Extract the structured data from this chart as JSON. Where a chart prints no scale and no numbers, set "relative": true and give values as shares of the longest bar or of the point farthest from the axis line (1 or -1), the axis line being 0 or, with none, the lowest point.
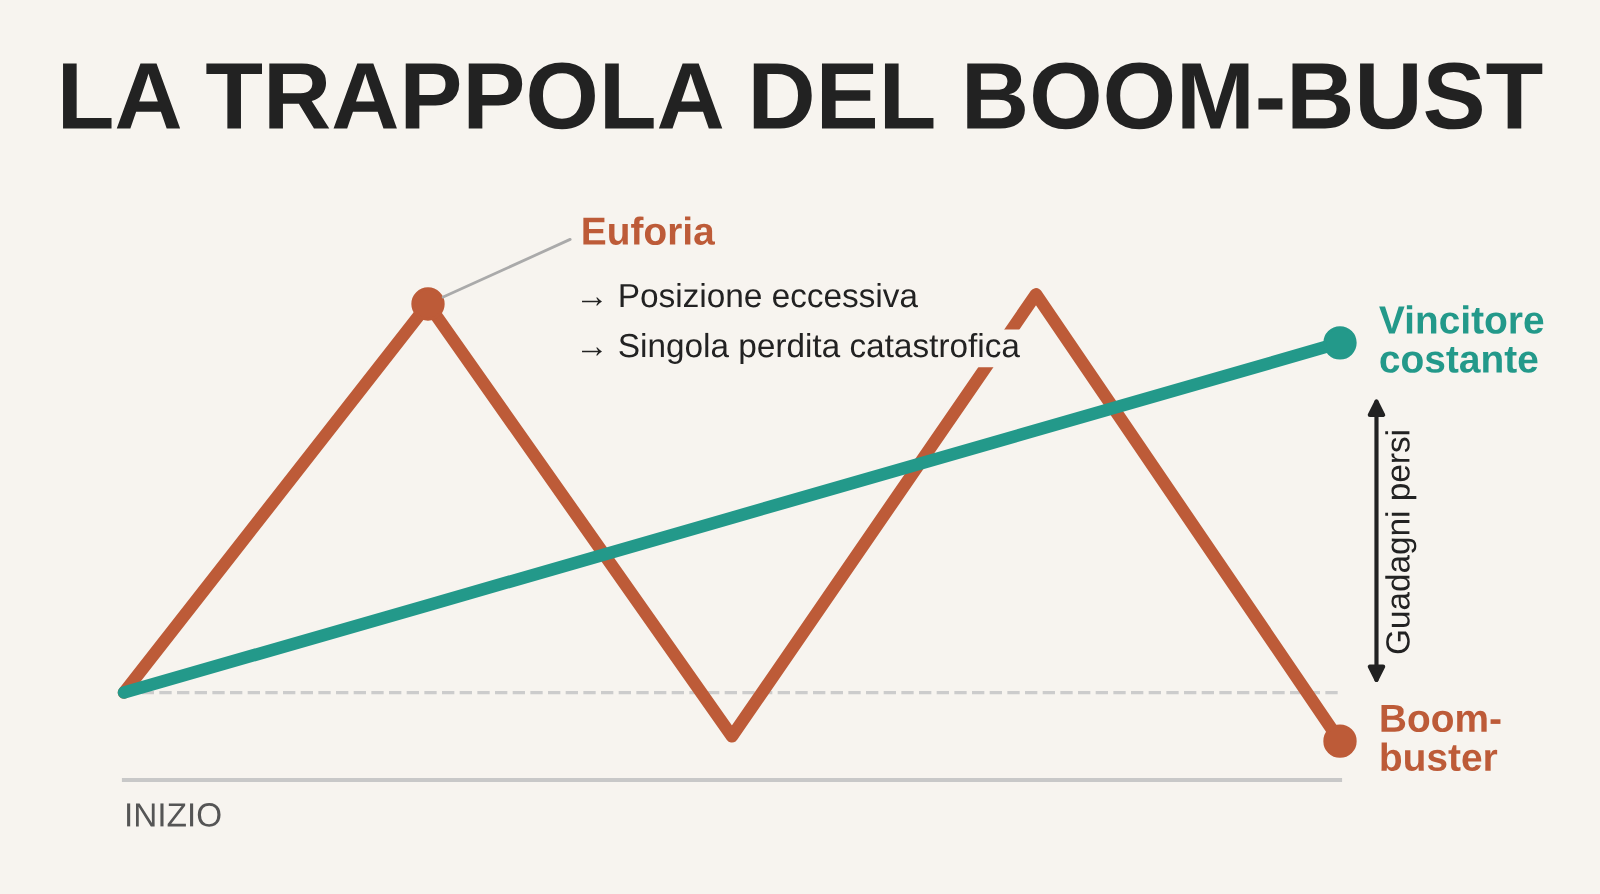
{
  "chart_data": {
    "type": "line",
    "title": "LA TRAPPOLA DEL BOOM-BUST",
    "xlabel": "INIZIO",
    "relative": true,
    "categories": [
      null,
      null,
      null,
      null,
      null
    ],
    "series": [
      {
        "name": "Boom-buster",
        "color": "#bd5b38",
        "values": [
          0.18,
          0.98,
          0.09,
          1.0,
          0.08
        ]
      },
      {
        "name": "Vincitore costante",
        "color": "#23998a",
        "values": [
          0.18,
          0.36,
          0.54,
          0.72,
          0.9
        ]
      }
    ],
    "annotations": [
      "Euforia",
      "→ Posizione eccessiva",
      "→ Singola perdita catastrofica",
      "Guadagni persi"
    ],
    "ref_lines": [
      {
        "axis": "y",
        "value": 0.18,
        "color": "#cccccc",
        "line_style": "dashed"
      }
    ],
    "line_style": "solid",
    "legend": false
  }
}
